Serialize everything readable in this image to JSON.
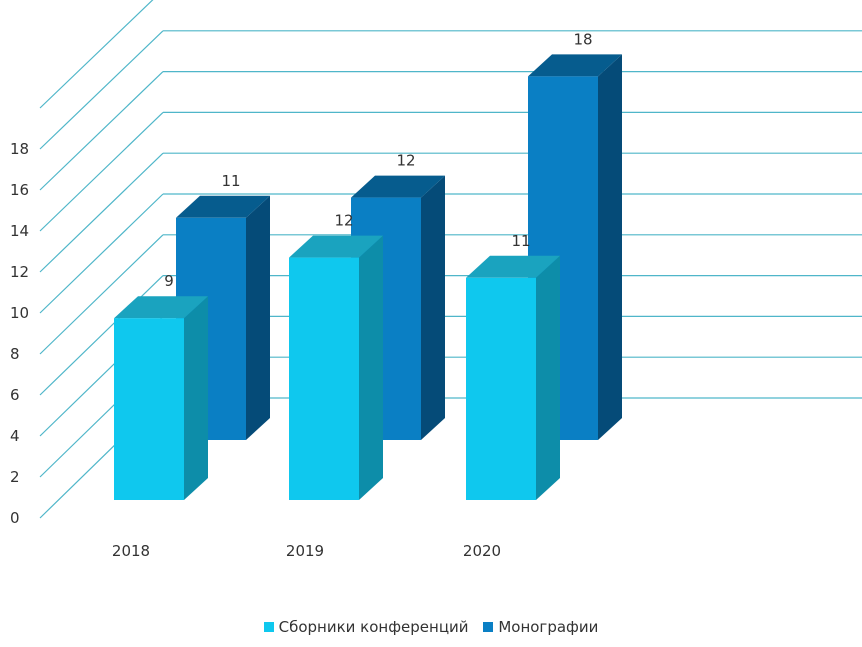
{
  "chart_data": {
    "type": "bar",
    "categories": [
      "2018",
      "2019",
      "2020"
    ],
    "series": [
      {
        "name": "Сборники конференций",
        "values": [
          9,
          12,
          11
        ],
        "color": "#0fc8ee"
      },
      {
        "name": "Монографии",
        "values": [
          11,
          12,
          18
        ],
        "color": "#0a7fc4"
      }
    ],
    "yticks": [
      "0",
      "2",
      "4",
      "6",
      "8",
      "10",
      "12",
      "14",
      "16",
      "18"
    ],
    "ylim": [
      0,
      18
    ],
    "grid": true,
    "grid_color": "#4fb6c9",
    "legend_position": "bottom"
  }
}
